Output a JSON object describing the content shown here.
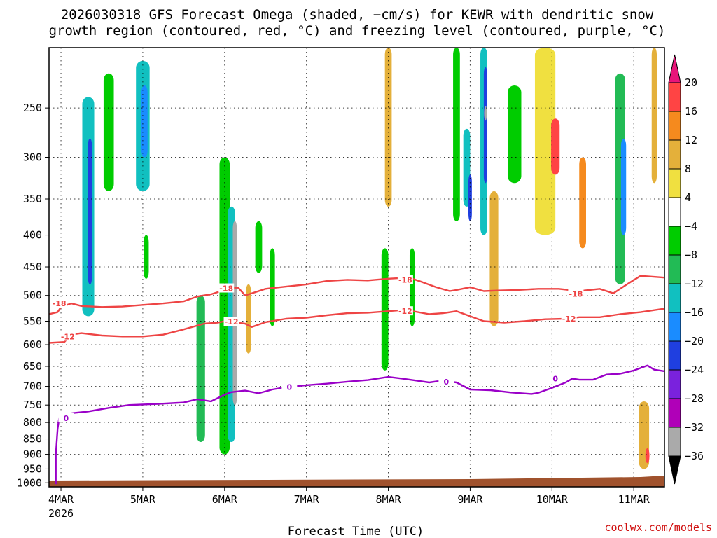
{
  "chart_data": {
    "type": "heatmap",
    "title_lines": [
      "2026030318 GFS Forecast Omega (shaded, −cm/s) for KEWR with dendritic snow",
      "growth region (contoured, red, °C) and freezing level (contoured, purple, °C)"
    ],
    "xlabel": "Forecast Time (UTC)",
    "credit": "coolwx.com/models",
    "x_ticks": [
      "4MAR",
      "5MAR",
      "6MAR",
      "7MAR",
      "8MAR",
      "9MAR",
      "10MAR",
      "11MAR"
    ],
    "x_tick_values": [
      0,
      24,
      48,
      72,
      96,
      120,
      144,
      168
    ],
    "x_year_label": "2026",
    "xlim": [
      -3.5,
      177
    ],
    "y_ticks": [
      "250",
      "300",
      "350",
      "400",
      "450",
      "500",
      "550",
      "600",
      "650",
      "700",
      "750",
      "800",
      "850",
      "900",
      "950",
      "1000"
    ],
    "y_tick_values": [
      250,
      300,
      350,
      400,
      450,
      500,
      550,
      600,
      650,
      700,
      750,
      800,
      850,
      900,
      950,
      1000
    ],
    "ylim_hpa": [
      200,
      1015
    ],
    "colorbar": {
      "labels": [
        "20",
        "16",
        "12",
        "8",
        "4",
        "−4",
        "−8",
        "−12",
        "−16",
        "−20",
        "−24",
        "−28",
        "−32",
        "−36"
      ],
      "label_values": [
        20,
        16,
        12,
        8,
        4,
        -4,
        -8,
        -12,
        -16,
        -20,
        -24,
        -28,
        -32,
        -36
      ],
      "bands": [
        {
          "range": [
            16,
            20
          ],
          "color": "#ff4444"
        },
        {
          "range": [
            12,
            16
          ],
          "color": "#f58a1e"
        },
        {
          "range": [
            8,
            12
          ],
          "color": "#e4b03a"
        },
        {
          "range": [
            4,
            8
          ],
          "color": "#f0e040"
        },
        {
          "range": [
            -4,
            4
          ],
          "color": "#ffffff"
        },
        {
          "range": [
            -8,
            -4
          ],
          "color": "#00cc00"
        },
        {
          "range": [
            -12,
            -8
          ],
          "color": "#22bb55"
        },
        {
          "range": [
            -16,
            -12
          ],
          "color": "#11c0c0"
        },
        {
          "range": [
            -20,
            -16
          ],
          "color": "#1a8cff"
        },
        {
          "range": [
            -24,
            -20
          ],
          "color": "#1f3fe0"
        },
        {
          "range": [
            -28,
            -24
          ],
          "color": "#7a22dd"
        },
        {
          "range": [
            -32,
            -28
          ],
          "color": "#b000b8"
        },
        {
          "range": [
            -36,
            -32
          ],
          "color": "#aaaaaa"
        }
      ],
      "top_arrow_color": "#e8157a",
      "bottom_arrow_color": "#000000"
    },
    "colors": {
      "dgz_contour": "#ee4444",
      "freezing_contour": "#9a00c8",
      "ground": "#a0522d"
    },
    "contours": [
      {
        "label": "-18",
        "color": "#ee4444",
        "label_positions": [
          {
            "t": -0.5,
            "p": 515
          },
          {
            "t": 48.5,
            "p": 487
          },
          {
            "t": 101,
            "p": 472
          },
          {
            "t": 151,
            "p": 497
          }
        ],
        "points": [
          [
            -3.5,
            536
          ],
          [
            -1,
            532
          ],
          [
            0,
            522
          ],
          [
            3,
            515
          ],
          [
            6,
            520
          ],
          [
            12,
            522
          ],
          [
            18,
            521
          ],
          [
            24,
            518
          ],
          [
            30,
            515
          ],
          [
            36,
            511
          ],
          [
            40,
            502
          ],
          [
            44,
            498
          ],
          [
            48,
            490
          ],
          [
            50,
            486
          ],
          [
            52,
            486
          ],
          [
            54,
            500
          ],
          [
            56,
            496
          ],
          [
            60,
            488
          ],
          [
            66,
            484
          ],
          [
            72,
            480
          ],
          [
            78,
            474
          ],
          [
            84,
            472
          ],
          [
            90,
            473
          ],
          [
            96,
            470
          ],
          [
            102,
            468
          ],
          [
            106,
            476
          ],
          [
            110,
            485
          ],
          [
            114,
            492
          ],
          [
            116,
            490
          ],
          [
            120,
            485
          ],
          [
            124,
            492
          ],
          [
            128,
            491
          ],
          [
            134,
            490
          ],
          [
            140,
            488
          ],
          [
            146,
            488
          ],
          [
            152,
            492
          ],
          [
            158,
            488
          ],
          [
            162,
            496
          ],
          [
            166,
            480
          ],
          [
            170,
            465
          ],
          [
            177,
            468
          ]
        ]
      },
      {
        "label": "-12",
        "color": "#ee4444",
        "label_positions": [
          {
            "t": 2,
            "p": 582
          },
          {
            "t": 50,
            "p": 551
          },
          {
            "t": 101,
            "p": 530
          },
          {
            "t": 149,
            "p": 545
          }
        ],
        "points": [
          [
            -3.5,
            596
          ],
          [
            1,
            594
          ],
          [
            3,
            578
          ],
          [
            6,
            575
          ],
          [
            12,
            580
          ],
          [
            18,
            582
          ],
          [
            24,
            582
          ],
          [
            30,
            578
          ],
          [
            36,
            567
          ],
          [
            42,
            555
          ],
          [
            46,
            553
          ],
          [
            48,
            550
          ],
          [
            54,
            555
          ],
          [
            56,
            562
          ],
          [
            60,
            552
          ],
          [
            66,
            545
          ],
          [
            72,
            543
          ],
          [
            78,
            538
          ],
          [
            84,
            534
          ],
          [
            90,
            533
          ],
          [
            96,
            530
          ],
          [
            100,
            528
          ],
          [
            104,
            531
          ],
          [
            108,
            536
          ],
          [
            112,
            534
          ],
          [
            116,
            530
          ],
          [
            120,
            540
          ],
          [
            124,
            550
          ],
          [
            130,
            553
          ],
          [
            136,
            550
          ],
          [
            142,
            546
          ],
          [
            148,
            545
          ],
          [
            152,
            542
          ],
          [
            158,
            542
          ],
          [
            164,
            536
          ],
          [
            170,
            532
          ],
          [
            177,
            525
          ]
        ]
      },
      {
        "label": "0",
        "color": "#9a00c8",
        "label_positions": [
          {
            "t": 1.5,
            "p": 787
          },
          {
            "t": 67,
            "p": 702
          },
          {
            "t": 113,
            "p": 688
          },
          {
            "t": 145,
            "p": 680
          }
        ],
        "points": [
          [
            -1.5,
            1005
          ],
          [
            -1.5,
            900
          ],
          [
            -1,
            820
          ],
          [
            -0.5,
            785
          ],
          [
            1,
            776
          ],
          [
            4,
            772
          ],
          [
            8,
            768
          ],
          [
            14,
            758
          ],
          [
            20,
            750
          ],
          [
            28,
            747
          ],
          [
            36,
            743
          ],
          [
            40,
            734
          ],
          [
            44,
            740
          ],
          [
            48,
            722
          ],
          [
            50,
            715
          ],
          [
            54,
            711
          ],
          [
            58,
            718
          ],
          [
            62,
            708
          ],
          [
            66,
            702
          ],
          [
            72,
            697
          ],
          [
            78,
            693
          ],
          [
            84,
            688
          ],
          [
            90,
            684
          ],
          [
            96,
            676
          ],
          [
            100,
            680
          ],
          [
            104,
            685
          ],
          [
            108,
            690
          ],
          [
            112,
            685
          ],
          [
            116,
            690
          ],
          [
            120,
            708
          ],
          [
            126,
            710
          ],
          [
            132,
            716
          ],
          [
            138,
            720
          ],
          [
            140,
            717
          ],
          [
            144,
            704
          ],
          [
            148,
            690
          ],
          [
            150,
            680
          ],
          [
            152,
            683
          ],
          [
            156,
            683
          ],
          [
            160,
            670
          ],
          [
            164,
            668
          ],
          [
            168,
            660
          ],
          [
            172,
            648
          ],
          [
            174,
            658
          ],
          [
            177,
            662
          ]
        ]
      }
    ],
    "omega_cells": [
      {
        "t": 8,
        "p1": 240,
        "p2": 540,
        "v": -14,
        "w": 3.5
      },
      {
        "t": 8.5,
        "p1": 280,
        "p2": 480,
        "v": -24,
        "w": 1.2
      },
      {
        "t": 14,
        "p1": 220,
        "p2": 340,
        "v": -8,
        "w": 3
      },
      {
        "t": 24,
        "p1": 210,
        "p2": 340,
        "v": -14,
        "w": 4
      },
      {
        "t": 24.5,
        "p1": 230,
        "p2": 300,
        "v": -20,
        "w": 1.8
      },
      {
        "t": 25,
        "p1": 400,
        "p2": 470,
        "v": -8,
        "w": 1.5
      },
      {
        "t": 41,
        "p1": 500,
        "p2": 860,
        "v": -10,
        "w": 2.5
      },
      {
        "t": 48,
        "p1": 300,
        "p2": 900,
        "v": -8,
        "w": 3
      },
      {
        "t": 50,
        "p1": 360,
        "p2": 860,
        "v": -16,
        "w": 2.2
      },
      {
        "t": 51,
        "p1": 380,
        "p2": 750,
        "v": -36,
        "w": 1.2
      },
      {
        "t": 55,
        "p1": 480,
        "p2": 620,
        "v": 8,
        "w": 1.5
      },
      {
        "t": 58,
        "p1": 380,
        "p2": 460,
        "v": -8,
        "w": 2
      },
      {
        "t": 62,
        "p1": 420,
        "p2": 560,
        "v": -8,
        "w": 1.5
      },
      {
        "t": 95,
        "p1": 420,
        "p2": 660,
        "v": -8,
        "w": 2
      },
      {
        "t": 96,
        "p1": 200,
        "p2": 360,
        "v": 8,
        "w": 2
      },
      {
        "t": 103,
        "p1": 420,
        "p2": 560,
        "v": -8,
        "w": 1.5
      },
      {
        "t": 116,
        "p1": 200,
        "p2": 380,
        "v": -8,
        "w": 2
      },
      {
        "t": 119,
        "p1": 270,
        "p2": 360,
        "v": -16,
        "w": 2
      },
      {
        "t": 120,
        "p1": 320,
        "p2": 380,
        "v": -24,
        "w": 1
      },
      {
        "t": 124,
        "p1": 200,
        "p2": 400,
        "v": -14,
        "w": 2
      },
      {
        "t": 124.5,
        "p1": 215,
        "p2": 330,
        "v": -24,
        "w": 1
      },
      {
        "t": 124.5,
        "p1": 248,
        "p2": 262,
        "v": -36,
        "w": 0.8
      },
      {
        "t": 127,
        "p1": 340,
        "p2": 560,
        "v": 10,
        "w": 2.5
      },
      {
        "t": 133,
        "p1": 230,
        "p2": 330,
        "v": -8,
        "w": 4
      },
      {
        "t": 142,
        "p1": 200,
        "p2": 400,
        "v": 6,
        "w": 6
      },
      {
        "t": 145,
        "p1": 260,
        "p2": 320,
        "v": 16,
        "w": 2.5
      },
      {
        "t": 153,
        "p1": 300,
        "p2": 420,
        "v": 12,
        "w": 2
      },
      {
        "t": 164,
        "p1": 220,
        "p2": 480,
        "v": -10,
        "w": 3
      },
      {
        "t": 165,
        "p1": 280,
        "p2": 400,
        "v": -20,
        "w": 1.5
      },
      {
        "t": 171,
        "p1": 740,
        "p2": 950,
        "v": 10,
        "w": 3
      },
      {
        "t": 172,
        "p1": 880,
        "p2": 930,
        "v": 16,
        "w": 1.2
      },
      {
        "t": 174,
        "p1": 200,
        "p2": 330,
        "v": 8,
        "w": 1.5
      }
    ]
  }
}
